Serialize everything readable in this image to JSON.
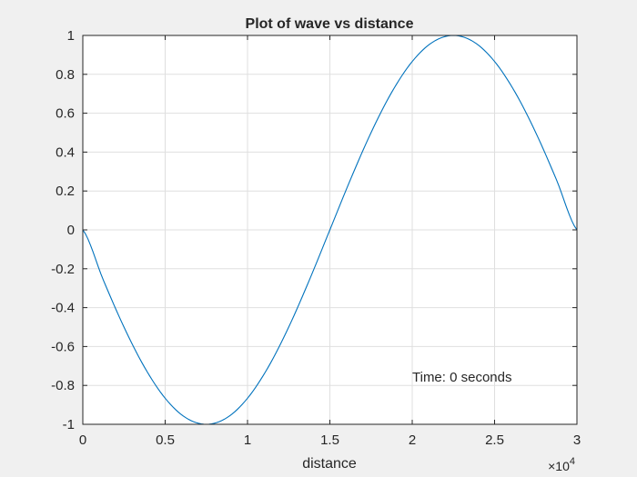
{
  "chart_data": {
    "type": "line",
    "title": "Plot of wave vs distance",
    "xlabel": "distance",
    "ylabel": "",
    "xlim": [
      0,
      30000
    ],
    "ylim": [
      -1,
      1
    ],
    "x_scale_exponent": "10",
    "x_scale_power": "4",
    "x_scale_prefix": "×",
    "xticks": [
      0,
      5000,
      10000,
      15000,
      20000,
      25000,
      30000
    ],
    "xtick_labels": [
      "0",
      "0.5",
      "1",
      "1.5",
      "2",
      "2.5",
      "3"
    ],
    "yticks": [
      -1,
      -0.8,
      -0.6,
      -0.4,
      -0.2,
      0,
      0.2,
      0.4,
      0.6,
      0.8,
      1
    ],
    "ytick_labels": [
      "-1",
      "-0.8",
      "-0.6",
      "-0.4",
      "-0.2",
      "0",
      "0.2",
      "0.4",
      "0.6",
      "0.8",
      "1"
    ],
    "grid": true,
    "series": [
      {
        "color": "#0072bd",
        "x": [
          0,
          1250,
          2500,
          3750,
          5000,
          6250,
          7500,
          8750,
          10000,
          11250,
          12500,
          13750,
          15000,
          16250,
          17500,
          18750,
          20000,
          21250,
          22500,
          23750,
          25000,
          26250,
          27500,
          28750,
          30000
        ],
        "y": [
          0,
          -0.259,
          -0.5,
          -0.707,
          -0.866,
          -0.966,
          -1,
          -0.966,
          -0.866,
          -0.707,
          -0.5,
          -0.259,
          0,
          0.259,
          0.5,
          0.707,
          0.866,
          0.966,
          1,
          0.966,
          0.866,
          0.707,
          0.5,
          0.259,
          0
        ]
      }
    ],
    "annotations": [
      {
        "text": "Time: 0 seconds",
        "x": 20000,
        "y": -0.8
      }
    ]
  }
}
